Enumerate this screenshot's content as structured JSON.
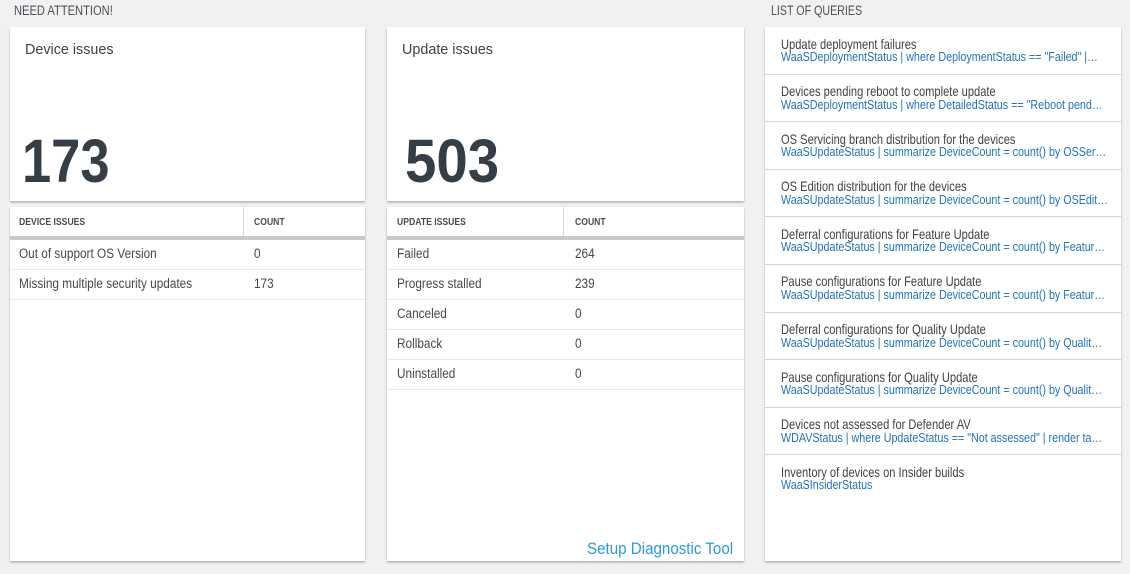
{
  "sections": {
    "need_attention": "NEED ATTENTION!",
    "list_of_queries": "LIST OF QUERIES"
  },
  "tiles": [
    {
      "title": "Device issues",
      "value": "173"
    },
    {
      "title": "Update issues",
      "value": "503"
    }
  ],
  "grids": [
    {
      "headers": [
        "DEVICE ISSUES",
        "COUNT"
      ],
      "rows": [
        {
          "label": "Out of support OS Version",
          "count": "0"
        },
        {
          "label": "Missing multiple security updates",
          "count": "173"
        }
      ]
    },
    {
      "headers": [
        "UPDATE ISSUES",
        "COUNT"
      ],
      "rows": [
        {
          "label": "Failed",
          "count": "264"
        },
        {
          "label": "Progress stalled",
          "count": "239"
        },
        {
          "label": "Canceled",
          "count": "0"
        },
        {
          "label": "Rollback",
          "count": "0"
        },
        {
          "label": "Uninstalled",
          "count": "0"
        }
      ],
      "footer_link": "Setup Diagnostic Tool"
    }
  ],
  "queries": [
    {
      "name": "Update deployment failures",
      "query": "WaaSDeploymentStatus | where DeploymentStatus == \"Failed\" |…"
    },
    {
      "name": "Devices pending reboot to complete update",
      "query": "WaaSDeploymentStatus | where DetailedStatus == \"Reboot pend…"
    },
    {
      "name": "OS Servicing branch distribution for the devices",
      "query": "WaaSUpdateStatus | summarize DeviceCount = count() by OSSer…"
    },
    {
      "name": "OS Edition distribution for the devices",
      "query": "WaaSUpdateStatus | summarize DeviceCount = count() by OSEdit…"
    },
    {
      "name": "Deferral configurations for Feature Update",
      "query": "WaaSUpdateStatus | summarize DeviceCount = count() by Featur…"
    },
    {
      "name": "Pause configurations for Feature Update",
      "query": "WaaSUpdateStatus | summarize DeviceCount = count() by Featur…"
    },
    {
      "name": "Deferral configurations for Quality Update",
      "query": "WaaSUpdateStatus | summarize DeviceCount = count() by Qualit…"
    },
    {
      "name": "Pause configurations for Quality Update",
      "query": "WaaSUpdateStatus | summarize DeviceCount = count() by Qualit…"
    },
    {
      "name": "Devices not assessed for Defender AV",
      "query": "WDAVStatus | where UpdateStatus == \"Not assessed\" | render ta…"
    },
    {
      "name": "Inventory of devices on Insider builds",
      "query": "WaaSInsiderStatus"
    }
  ],
  "colors": {
    "query_blue": "#2173ba",
    "link_blue": "#2b9ad9",
    "background": "#f1f1f1"
  }
}
